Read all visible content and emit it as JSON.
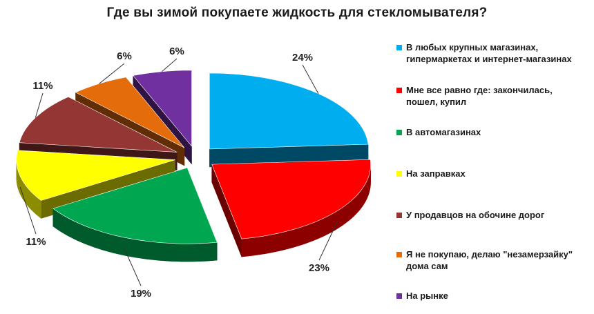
{
  "chart_data": {
    "type": "pie",
    "title": "Где вы зимой покупаете жидкость для стекломывателя?",
    "slices": [
      {
        "label": "В любых крупных магазинах,\nгипермаркетах и интернет-магазинах",
        "value": 24,
        "value_label": "24%",
        "color": "#00aeef"
      },
      {
        "label": "Мне все равно где: закончилась,\nпошел, купил",
        "value": 23,
        "value_label": "23%",
        "color": "#ff0000"
      },
      {
        "label": "В автомагазинах",
        "value": 19,
        "value_label": "19%",
        "color": "#00a650"
      },
      {
        "label": "На заправках",
        "value": 11,
        "value_label": "11%",
        "color": "#ffff00"
      },
      {
        "label": "У продавцов на обочине дорог",
        "value": 11,
        "value_label": "11%",
        "color": "#943634"
      },
      {
        "label": "Я не покупаю, делаю \"незамерзайку\"\nдома сам",
        "value": 6,
        "value_label": "6%",
        "color": "#e46c0a"
      },
      {
        "label": "На рынке",
        "value": 6,
        "value_label": "6%",
        "color": "#7030a0"
      }
    ],
    "legend_position": "right",
    "style": "3d-exploded"
  }
}
